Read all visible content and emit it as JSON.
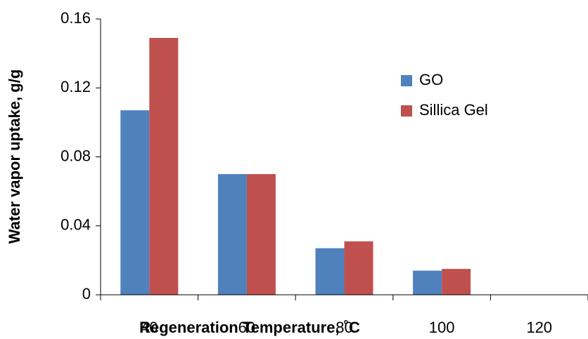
{
  "chart_data": {
    "type": "bar",
    "x_label": "Regeneration Temperature, ˚C",
    "y_label": "Water vapor uptake, g/g",
    "categories": [
      "40",
      "60",
      "80",
      "100",
      "120"
    ],
    "series": [
      {
        "name": "GO",
        "color": "#4f81bd",
        "values": [
          0.107,
          0.07,
          0.027,
          0.014,
          null
        ]
      },
      {
        "name": "Sillica Gel",
        "color": "#c0504d",
        "values": [
          0.149,
          0.07,
          0.031,
          0.015,
          null
        ]
      }
    ],
    "ylim": [
      0,
      0.16
    ],
    "yticks": [
      0,
      0.04,
      0.08,
      0.12,
      0.16
    ]
  }
}
